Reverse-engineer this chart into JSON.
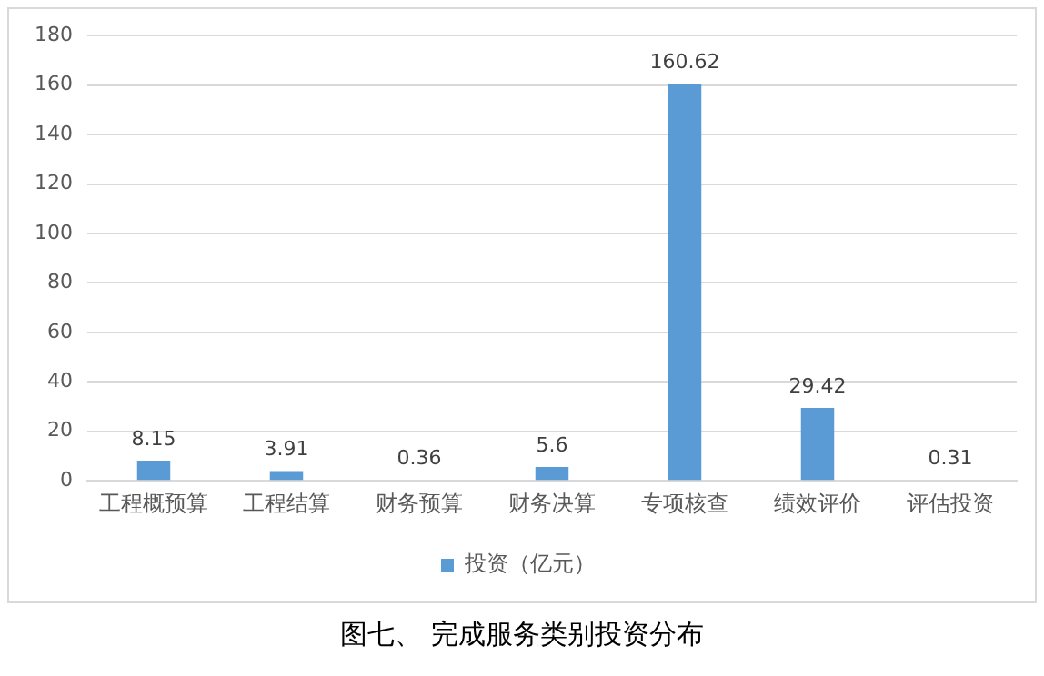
{
  "chart_data": {
    "type": "bar",
    "title": "图七、 完成服务类别投资分布",
    "categories": [
      "工程概预算",
      "工程结算",
      "财务预算",
      "财务决算",
      "专项核查",
      "绩效评价",
      "评估投资"
    ],
    "series": [
      {
        "name": "投资（亿元）",
        "color": "#5b9bd5",
        "values": [
          8.15,
          3.91,
          0.36,
          5.6,
          160.62,
          29.42,
          0.31
        ]
      }
    ],
    "ylim": [
      0,
      180
    ],
    "yticks": [
      0,
      20,
      40,
      60,
      80,
      100,
      120,
      140,
      160,
      180
    ],
    "grid": "y",
    "legend": "bottom",
    "data_labels": true
  }
}
